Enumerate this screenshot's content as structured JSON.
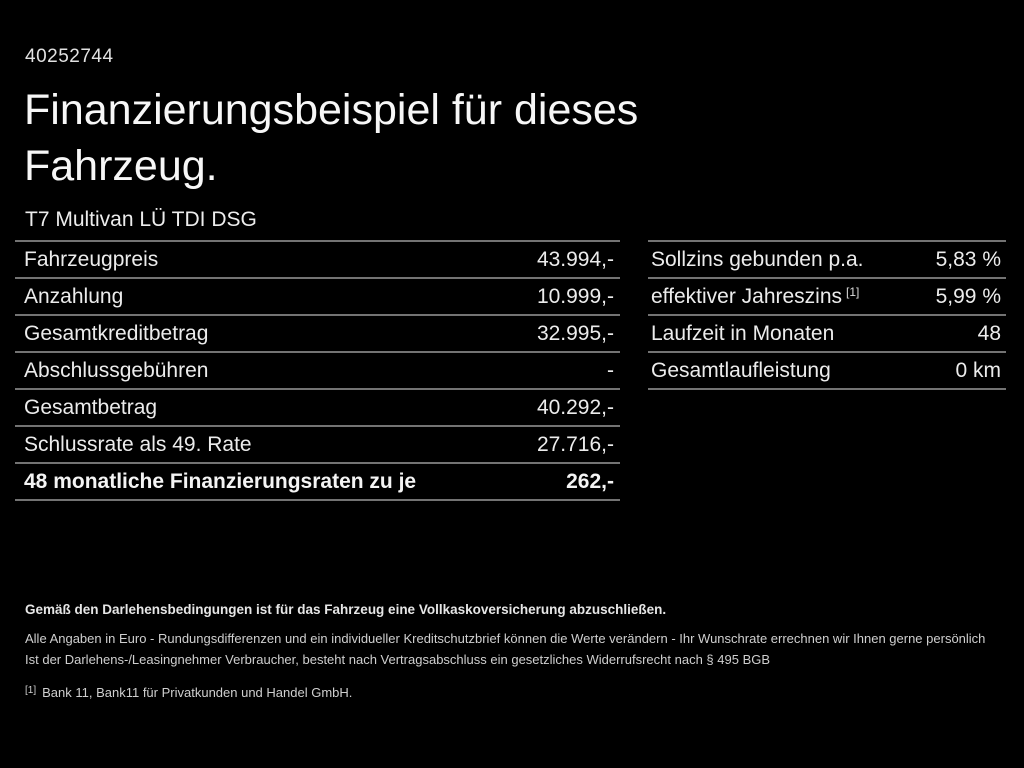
{
  "page": {
    "id_number": "40252744",
    "title_line1": "Finanzierungsbeispiel für dieses",
    "title_line2": "Fahrzeug.",
    "vehicle_model": "T7 Multivan LÜ TDI DSG"
  },
  "finance_table_left": {
    "rows": [
      {
        "label": "Fahrzeugpreis",
        "value": "43.994,-"
      },
      {
        "label": "Anzahlung",
        "value": "10.999,-"
      },
      {
        "label": "Gesamtkreditbetrag",
        "value": "32.995,-"
      },
      {
        "label": "Abschlussgebühren",
        "value": "-"
      },
      {
        "label": "Gesamtbetrag",
        "value": "40.292,-"
      },
      {
        "label": "Schlussrate als 49. Rate",
        "value": "27.716,-"
      },
      {
        "label": "48 monatliche Finanzierungsraten zu je",
        "value": "262,-"
      }
    ]
  },
  "finance_table_right": {
    "rows": [
      {
        "label": "Sollzins gebunden p.a.",
        "footnote": "",
        "value": "5,83 %"
      },
      {
        "label": "effektiver Jahreszins",
        "footnote": "[1]",
        "value": "5,99 %"
      },
      {
        "label": "Laufzeit in Monaten",
        "footnote": "",
        "value": "48"
      },
      {
        "label": "Gesamtlaufleistung",
        "footnote": "",
        "value": "0 km"
      }
    ]
  },
  "footnotes": {
    "insurance_bold": "Gemäß den Darlehensbedingungen ist für das Fahrzeug eine Vollkaskoversicherung abzuschließen.",
    "line2": "Alle Angaben in Euro - Rundungsdifferenzen und ein individueller Kreditschutzbrief können die Werte verändern - Ihr Wunschrate errechnen wir Ihnen gerne persönlich",
    "line3": "Ist der Darlehens-/Leasingnehmer Verbraucher, besteht nach Vertragsabschluss ein gesetzliches Widerrufsrecht nach § 495 BGB",
    "bank_marker": "[1]",
    "bank_text": "Bank 11, Bank11 für Privatkunden und Handel GmbH."
  },
  "colors": {
    "background": "#000000",
    "text_primary": "#ececec",
    "divider": "#737373"
  }
}
